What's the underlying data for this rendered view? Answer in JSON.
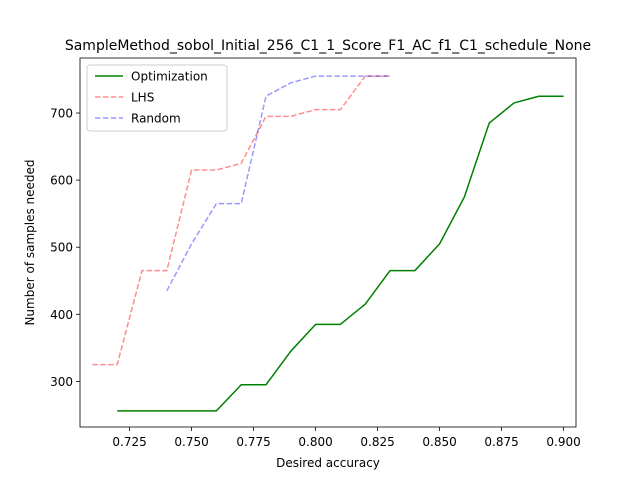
{
  "chart_data": {
    "type": "line",
    "title": "SampleMethod_sobol_Initial_256_C1_1_Score_F1_AC_f1_C1_schedule_None",
    "xlabel": "Desired accuracy",
    "ylabel": "Number of samples needed",
    "xlim": [
      0.705,
      0.905
    ],
    "ylim": [
      232,
      782
    ],
    "x_ticks": [
      0.725,
      0.75,
      0.775,
      0.8,
      0.825,
      0.85,
      0.875,
      0.9
    ],
    "x_tick_labels": [
      "0.725",
      "0.750",
      "0.775",
      "0.800",
      "0.825",
      "0.850",
      "0.875",
      "0.900"
    ],
    "y_ticks": [
      300,
      400,
      500,
      600,
      700
    ],
    "y_tick_labels": [
      "300",
      "400",
      "500",
      "600",
      "700"
    ],
    "grid": false,
    "legend_placement": "top-left",
    "series": [
      {
        "name": "Optimization",
        "color": "#008000",
        "style": "solid",
        "opacity": 1,
        "x": [
          0.72,
          0.73,
          0.74,
          0.75,
          0.76,
          0.77,
          0.78,
          0.79,
          0.8,
          0.81,
          0.82,
          0.83,
          0.84,
          0.85,
          0.86,
          0.87,
          0.88,
          0.89,
          0.9
        ],
        "y": [
          256,
          256,
          256,
          256,
          256,
          295,
          295,
          345,
          385,
          385,
          415,
          465,
          465,
          505,
          575,
          685,
          715,
          725,
          725
        ]
      },
      {
        "name": "LHS",
        "color": "#ff0000",
        "style": "dashed",
        "opacity": 0.45,
        "x": [
          0.71,
          0.72,
          0.73,
          0.74,
          0.75,
          0.76,
          0.77,
          0.78,
          0.79,
          0.8,
          0.81,
          0.82,
          0.83
        ],
        "y": [
          325,
          325,
          465,
          465,
          615,
          615,
          625,
          695,
          695,
          705,
          705,
          755,
          755
        ]
      },
      {
        "name": "Random",
        "color": "#0000ff",
        "style": "dashed",
        "opacity": 0.4,
        "x": [
          0.74,
          0.75,
          0.76,
          0.77,
          0.78,
          0.79,
          0.8,
          0.81,
          0.82,
          0.83
        ],
        "y": [
          435,
          505,
          565,
          565,
          725,
          745,
          755,
          755,
          755,
          755
        ]
      }
    ]
  }
}
